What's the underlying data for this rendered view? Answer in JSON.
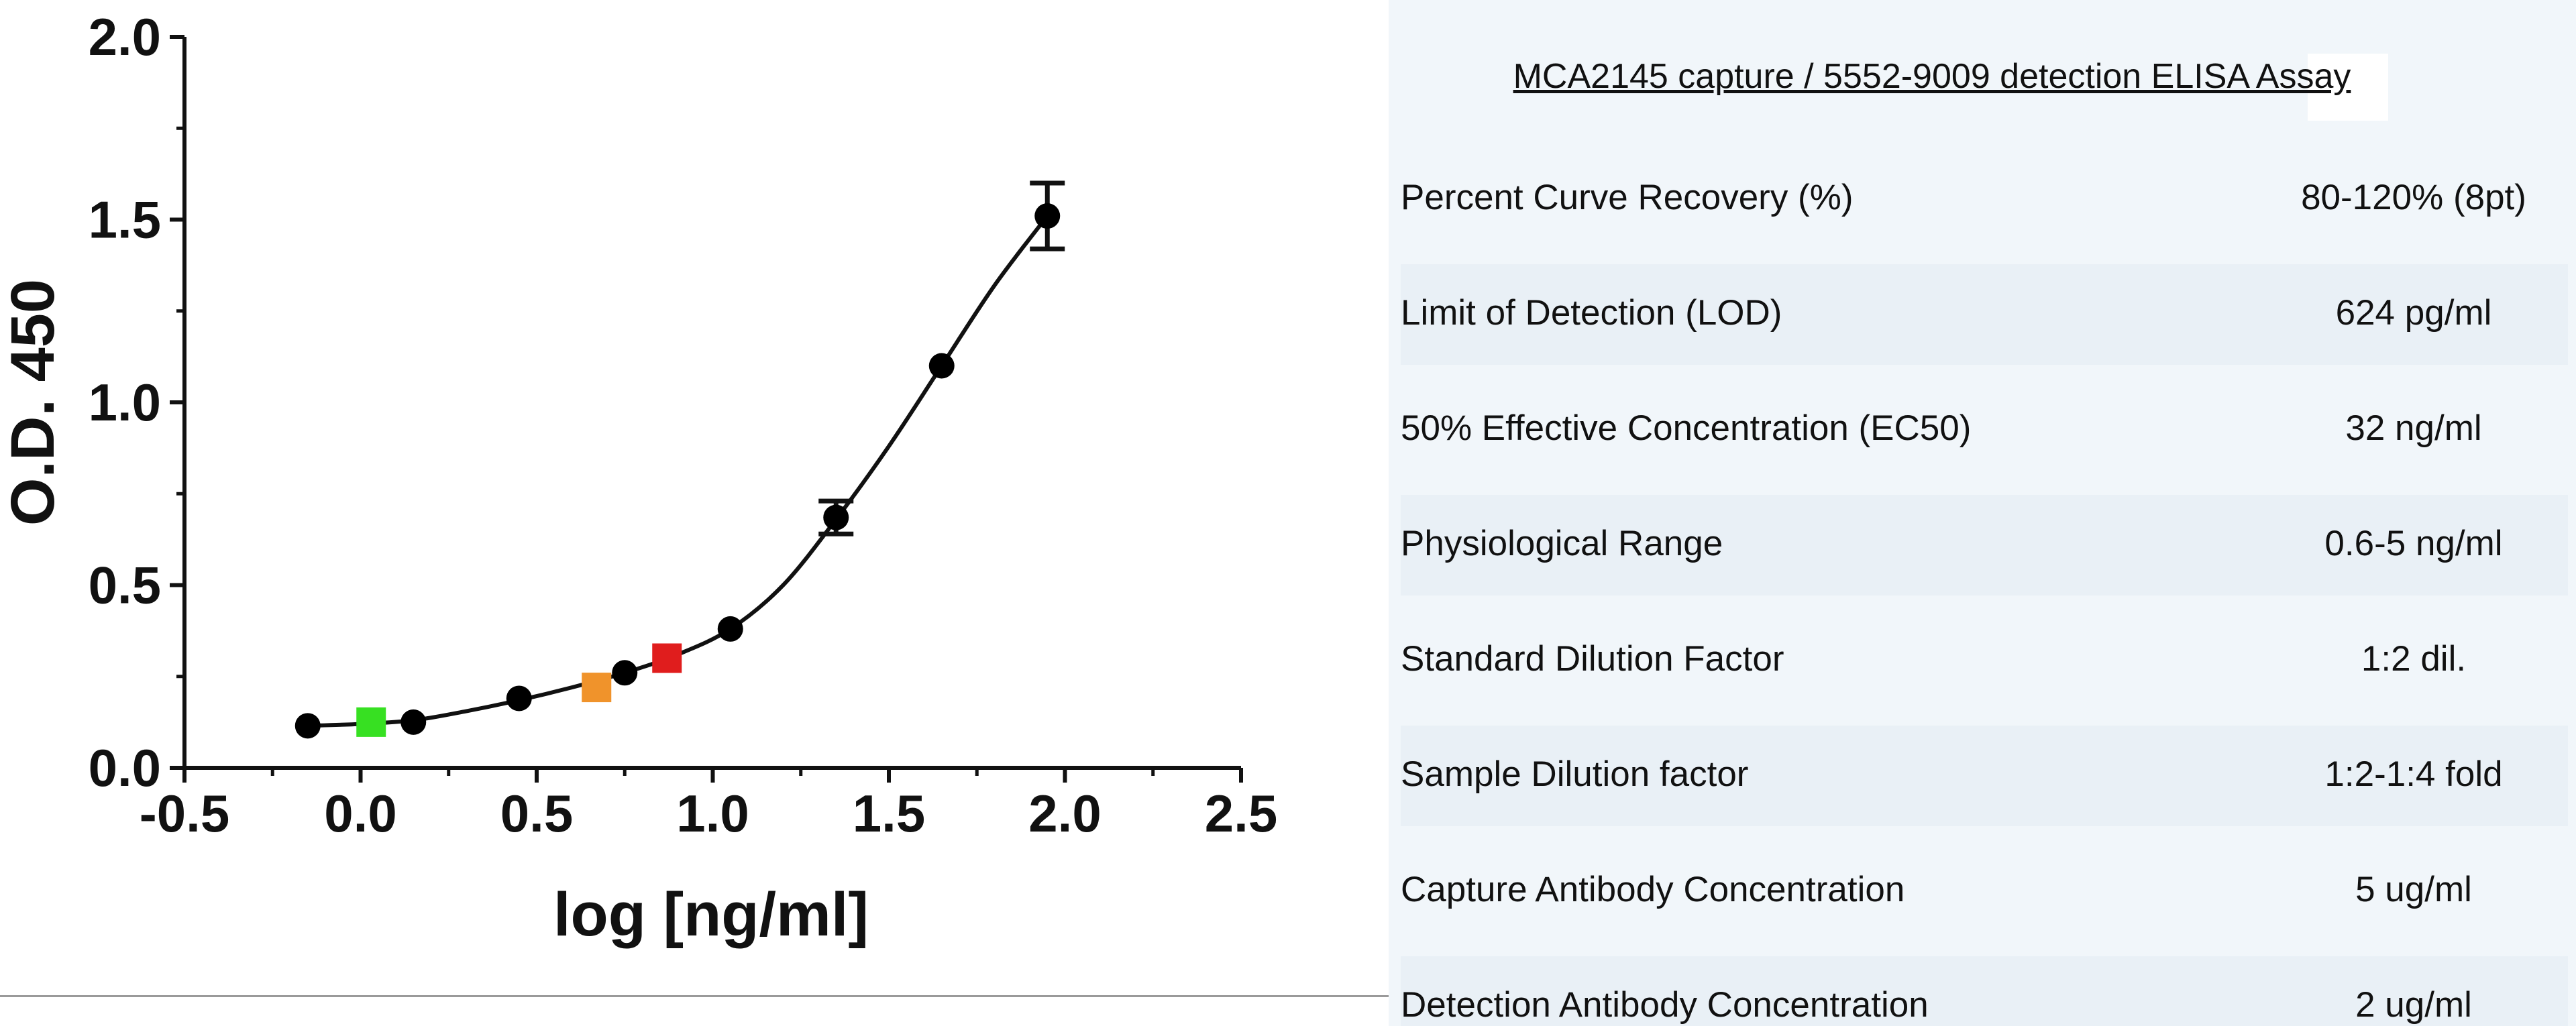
{
  "chart_data": {
    "type": "scatter",
    "title": "",
    "xlabel": "log [ng/ml]",
    "ylabel": "O.D. 450",
    "xlim": [
      -0.5,
      2.5
    ],
    "ylim": [
      0.0,
      2.0
    ],
    "xticks": [
      "-0.5",
      "0.0",
      "0.5",
      "1.0",
      "1.5",
      "2.0",
      "2.5"
    ],
    "yticks": [
      "0.0",
      "0.5",
      "1.0",
      "1.5",
      "2.0"
    ],
    "points": [
      {
        "x": -0.15,
        "y": 0.115,
        "err": 0.0,
        "marker": "circle",
        "color": "#000000"
      },
      {
        "x": 0.03,
        "y": 0.125,
        "err": 0.0,
        "marker": "square",
        "color": "#37e022"
      },
      {
        "x": 0.15,
        "y": 0.125,
        "err": 0.0,
        "marker": "circle",
        "color": "#000000"
      },
      {
        "x": 0.45,
        "y": 0.19,
        "err": 0.0,
        "marker": "circle",
        "color": "#000000"
      },
      {
        "x": 0.67,
        "y": 0.22,
        "err": 0.0,
        "marker": "square",
        "color": "#f0932b"
      },
      {
        "x": 0.75,
        "y": 0.26,
        "err": 0.0,
        "marker": "circle",
        "color": "#000000"
      },
      {
        "x": 0.87,
        "y": 0.3,
        "err": 0.0,
        "marker": "square",
        "color": "#e01d1d"
      },
      {
        "x": 1.05,
        "y": 0.38,
        "err": 0.0,
        "marker": "circle",
        "color": "#000000"
      },
      {
        "x": 1.35,
        "y": 0.685,
        "err": 0.045,
        "marker": "circle",
        "color": "#000000"
      },
      {
        "x": 1.65,
        "y": 1.1,
        "err": 0.0,
        "marker": "circle",
        "color": "#000000"
      },
      {
        "x": 1.95,
        "y": 1.51,
        "err": 0.09,
        "marker": "circle",
        "color": "#000000"
      }
    ],
    "fit_curve": {
      "x": [
        -0.15,
        0.0,
        0.15,
        0.3,
        0.45,
        0.6,
        0.75,
        0.9,
        1.05,
        1.2,
        1.35,
        1.5,
        1.65,
        1.8,
        1.95
      ],
      "y": [
        0.115,
        0.12,
        0.13,
        0.155,
        0.185,
        0.22,
        0.26,
        0.31,
        0.38,
        0.5,
        0.68,
        0.88,
        1.1,
        1.32,
        1.51
      ]
    }
  },
  "panel": {
    "title": "MCA2145 capture / 5552-9009 detection ELISA Assay",
    "rows": [
      {
        "label": "Percent Curve Recovery (%)",
        "value": "80-120% (8pt)"
      },
      {
        "label": "Limit of Detection (LOD)",
        "value": "624 pg/ml"
      },
      {
        "label": "50% Effective Concentration (EC50)",
        "value": "32 ng/ml"
      },
      {
        "label": "Physiological Range",
        "value": "0.6-5 ng/ml"
      },
      {
        "label": "Standard Dilution Factor",
        "value": "1:2 dil."
      },
      {
        "label": "Sample Dilution factor",
        "value": "1:2-1:4 fold"
      },
      {
        "label": "Capture Antibody Concentration",
        "value": "5 ug/ml"
      },
      {
        "label": "Detection Antibody Concentration",
        "value": "2 ug/ml"
      }
    ]
  }
}
